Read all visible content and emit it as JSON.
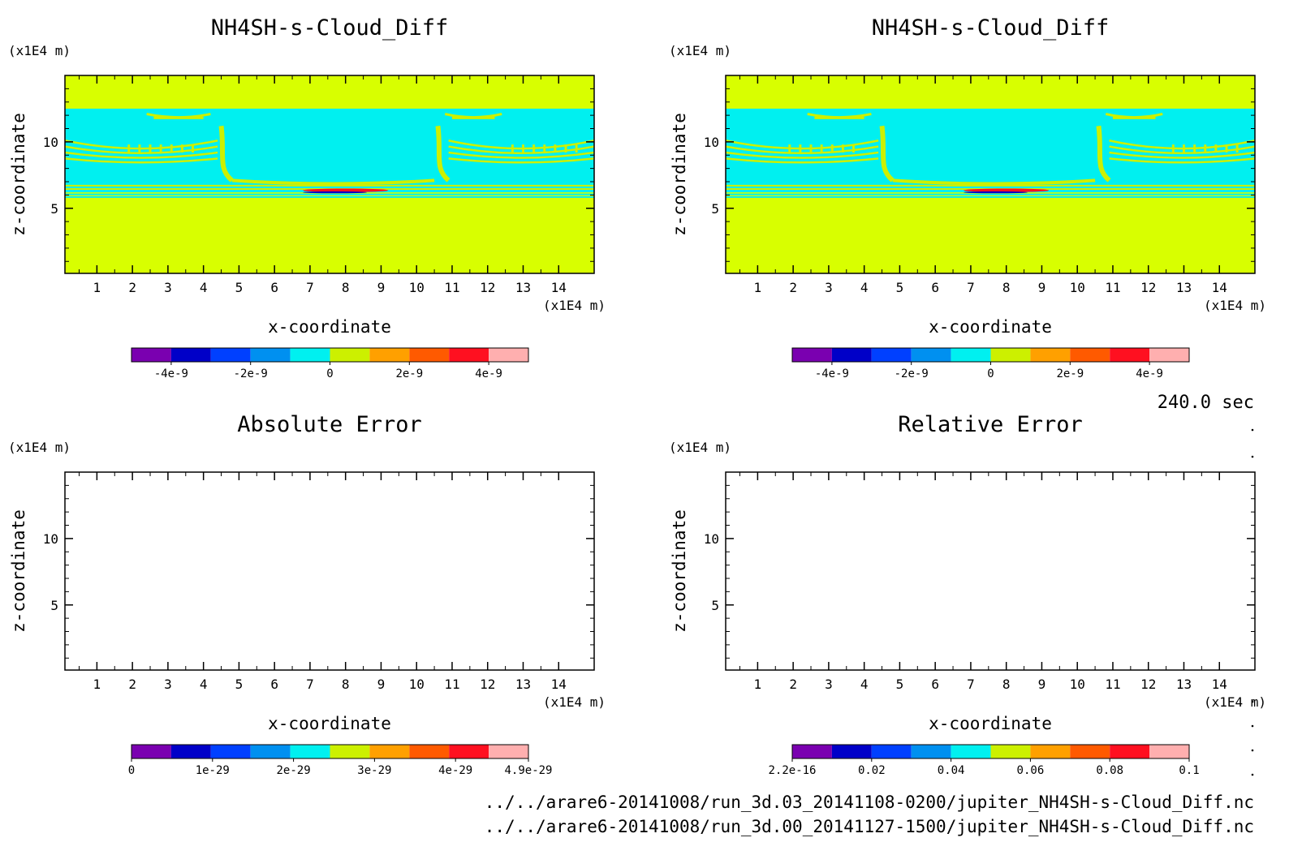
{
  "chart_data": [
    {
      "type": "heatmap",
      "title": "NH4SH-s-Cloud_Diff",
      "xlabel": "x-coordinate",
      "ylabel": "z-coordinate",
      "x_unit": "(x1E4 m)",
      "y_unit": "(x1E4 m)",
      "xlim": [
        0.1,
        15.0
      ],
      "ylim": [
        0.1,
        15.0
      ],
      "x_ticks": [
        1,
        2,
        3,
        4,
        5,
        6,
        7,
        8,
        9,
        10,
        11,
        12,
        13,
        14
      ],
      "y_ticks": [
        5,
        10
      ],
      "colorbar_ticks": [
        {
          "value": -4e-09,
          "label": "-4e-9"
        },
        {
          "value": -2e-09,
          "label": "-2e-9"
        },
        {
          "value": 0,
          "label": "0"
        },
        {
          "value": 2e-09,
          "label": "2e-9"
        },
        {
          "value": 4e-09,
          "label": "4e-9"
        }
      ],
      "colorbar_range": [
        -5e-09,
        5e-09
      ],
      "field_description": "background ~0 (yellow-green) above z≈12.5 and below z≈6; cyan band (~-0.5e-9) between z≈6.2 and z≈12.5; plume structures near x≈4.5 and x≈10.7; red/dark-blue filament near z≈6.3 around x≈7-9"
    },
    {
      "type": "heatmap",
      "title": "NH4SH-s-Cloud_Diff",
      "xlabel": "x-coordinate",
      "ylabel": "z-coordinate",
      "x_unit": "(x1E4 m)",
      "y_unit": "(x1E4 m)",
      "xlim": [
        0.1,
        15.0
      ],
      "ylim": [
        0.1,
        15.0
      ],
      "x_ticks": [
        1,
        2,
        3,
        4,
        5,
        6,
        7,
        8,
        9,
        10,
        11,
        12,
        13,
        14
      ],
      "y_ticks": [
        5,
        10
      ],
      "colorbar_ticks": [
        {
          "value": -4e-09,
          "label": "-4e-9"
        },
        {
          "value": -2e-09,
          "label": "-2e-9"
        },
        {
          "value": 0,
          "label": "0"
        },
        {
          "value": 2e-09,
          "label": "2e-9"
        },
        {
          "value": 4e-09,
          "label": "4e-9"
        }
      ],
      "colorbar_range": [
        -5e-09,
        5e-09
      ],
      "time_label": "240.0 sec"
    },
    {
      "type": "heatmap",
      "title": "Absolute Error",
      "xlabel": "x-coordinate",
      "ylabel": "z-coordinate",
      "x_unit": "(x1E4 m)",
      "y_unit": "(x1E4 m)",
      "xlim": [
        0.1,
        15.0
      ],
      "ylim": [
        0.1,
        15.0
      ],
      "x_ticks": [
        1,
        2,
        3,
        4,
        5,
        6,
        7,
        8,
        9,
        10,
        11,
        12,
        13,
        14
      ],
      "y_ticks": [
        5,
        10
      ],
      "colorbar_ticks": [
        {
          "value": 0,
          "label": "0"
        },
        {
          "value": 1e-29,
          "label": "1e-29"
        },
        {
          "value": 2e-29,
          "label": "2e-29"
        },
        {
          "value": 3e-29,
          "label": "3e-29"
        },
        {
          "value": 4e-29,
          "label": "4e-29"
        },
        {
          "value": 4.9e-29,
          "label": "4.9e-29"
        }
      ],
      "colorbar_range": [
        0,
        4.9e-29
      ],
      "field_description": "empty (no shading)"
    },
    {
      "type": "heatmap",
      "title": "Relative Error",
      "xlabel": "x-coordinate",
      "ylabel": "z-coordinate",
      "x_unit": "(x1E4 m)",
      "y_unit": "(x1E4 m)",
      "xlim": [
        0.1,
        15.0
      ],
      "ylim": [
        0.1,
        15.0
      ],
      "x_ticks": [
        1,
        2,
        3,
        4,
        5,
        6,
        7,
        8,
        9,
        10,
        11,
        12,
        13,
        14
      ],
      "y_ticks": [
        5,
        10
      ],
      "colorbar_ticks": [
        {
          "value": 2.2e-16,
          "label": "2.2e-16"
        },
        {
          "value": 0.02,
          "label": "0.02"
        },
        {
          "value": 0.04,
          "label": "0.04"
        },
        {
          "value": 0.06,
          "label": "0.06"
        },
        {
          "value": 0.08,
          "label": "0.08"
        },
        {
          "value": 0.1,
          "label": "0.1"
        }
      ],
      "colorbar_range": [
        2.2e-16,
        0.1
      ],
      "field_description": "empty (no shading)"
    }
  ],
  "colormap": [
    "#7a00b0",
    "#0000c8",
    "#0040ff",
    "#0090f0",
    "#00f0f0",
    "#ccf000",
    "#ffa000",
    "#ff5a00",
    "#ff1020",
    "#ffafaf"
  ],
  "field_colors": {
    "background": "#d8ff00",
    "band": "#00f0f0",
    "contour_light": "#ccf000",
    "hot": "#ff1020",
    "cold": "#0000c8"
  },
  "time_label": "240.0 sec",
  "file_paths": [
    "../../arare6-20141008/run_3d.03_20141108-0200/jupiter_NH4SH-s-Cloud_Diff.nc",
    "../../arare6-20141008/run_3d.00_20141127-1500/jupiter_NH4SH-s-Cloud_Diff.nc"
  ]
}
